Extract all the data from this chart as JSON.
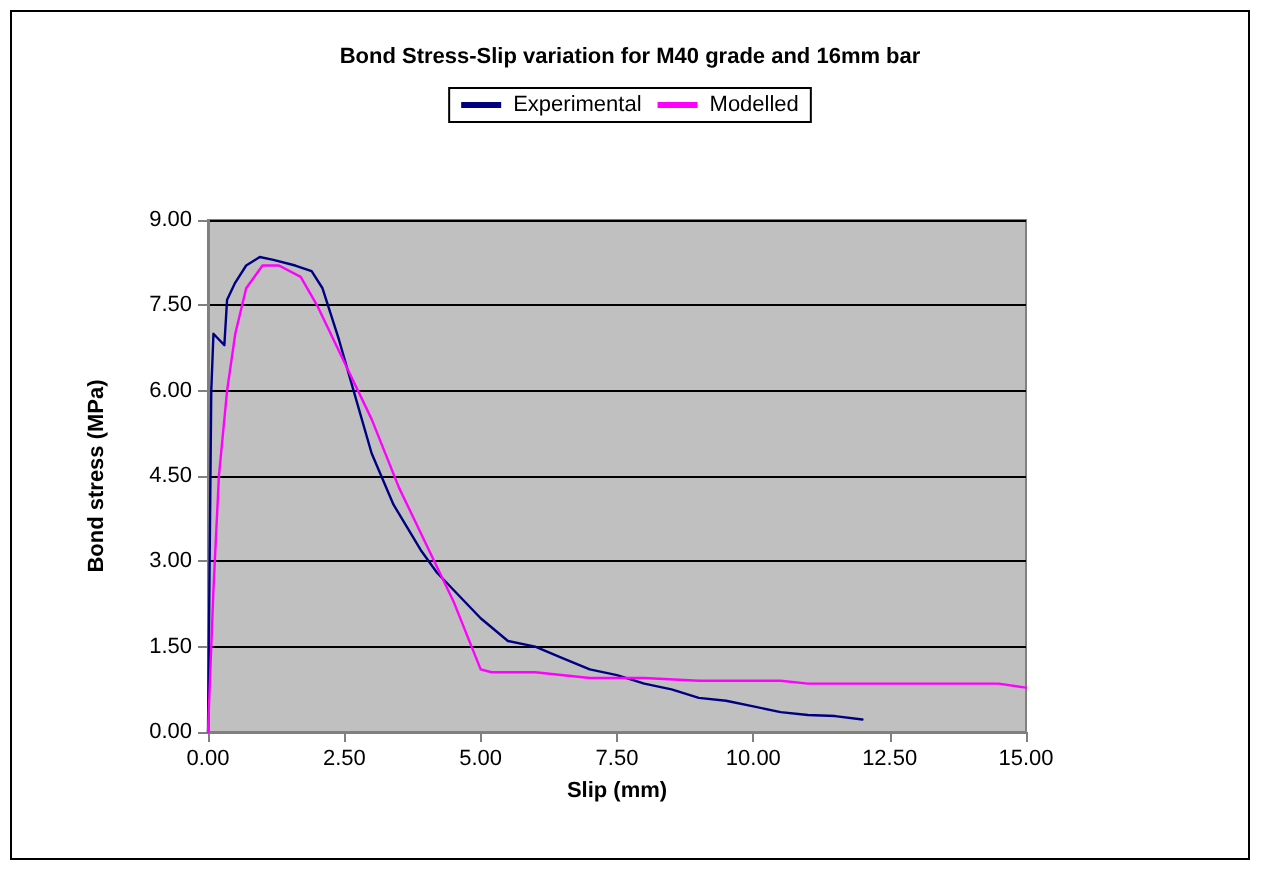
{
  "chart_data": {
    "type": "line",
    "title": "Bond Stress-Slip variation for M40 grade and 16mm bar",
    "xlabel": "Slip (mm)",
    "ylabel": "Bond stress (MPa)",
    "xlim": [
      0,
      15
    ],
    "xticks": [
      {
        "value": 0,
        "label": "0.00"
      },
      {
        "value": 2.5,
        "label": "2.50"
      },
      {
        "value": 5,
        "label": "5.00"
      },
      {
        "value": 7.5,
        "label": "7.50"
      },
      {
        "value": 10,
        "label": "10.00"
      },
      {
        "value": 12.5,
        "label": "12.50"
      },
      {
        "value": 15,
        "label": "15.00"
      }
    ],
    "ylim": [
      0,
      9
    ],
    "yticks": [
      {
        "value": 0,
        "label": "0.00"
      },
      {
        "value": 1.5,
        "label": "1.50"
      },
      {
        "value": 3,
        "label": "3.00"
      },
      {
        "value": 4.5,
        "label": "4.50"
      },
      {
        "value": 6,
        "label": "6.00"
      },
      {
        "value": 7.5,
        "label": "7.50"
      },
      {
        "value": 9,
        "label": "9.00"
      }
    ],
    "grid": "y",
    "legend": "top",
    "marker": "none",
    "line_style": "solid",
    "series": [
      {
        "name": "Experimental",
        "color": "#000080",
        "x": [
          0,
          0.03,
          0.06,
          0.1,
          0.2,
          0.3,
          0.35,
          0.5,
          0.7,
          0.95,
          1.2,
          1.6,
          1.9,
          2.1,
          2.4,
          2.7,
          3.0,
          3.4,
          3.9,
          4.2,
          4.6,
          5.0,
          5.5,
          6.0,
          6.5,
          7.0,
          7.5,
          8.0,
          8.5,
          9.0,
          9.5,
          10.0,
          10.5,
          11.0,
          11.5,
          12.0
        ],
        "values": [
          0,
          3.0,
          6.0,
          7.0,
          6.9,
          6.8,
          7.6,
          7.9,
          8.2,
          8.35,
          8.3,
          8.2,
          8.1,
          7.8,
          6.9,
          5.9,
          4.9,
          4.0,
          3.2,
          2.8,
          2.4,
          2.0,
          1.6,
          1.5,
          1.3,
          1.1,
          1.0,
          0.85,
          0.75,
          0.6,
          0.55,
          0.45,
          0.35,
          0.3,
          0.28,
          0.22
        ]
      },
      {
        "name": "Modelled",
        "color": "#ff00ff",
        "x": [
          0,
          0.1,
          0.2,
          0.35,
          0.5,
          0.7,
          1.0,
          1.3,
          1.7,
          2.0,
          2.5,
          3.0,
          3.5,
          4.0,
          4.5,
          5.0,
          5.2,
          6.0,
          7.0,
          8.0,
          9.0,
          10.5,
          11.0,
          14.5,
          15.0
        ],
        "values": [
          0,
          2.5,
          4.5,
          6.0,
          7.0,
          7.8,
          8.2,
          8.2,
          8.0,
          7.5,
          6.5,
          5.5,
          4.3,
          3.3,
          2.3,
          1.1,
          1.05,
          1.05,
          0.95,
          0.95,
          0.9,
          0.9,
          0.85,
          0.85,
          0.78
        ]
      }
    ]
  }
}
